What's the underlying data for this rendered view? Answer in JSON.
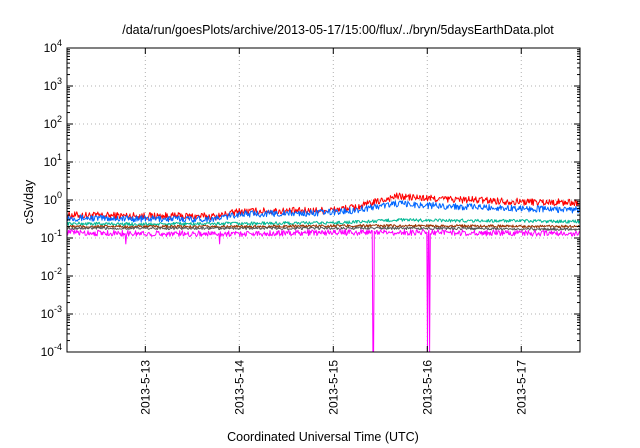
{
  "chart_data": {
    "type": "line",
    "title": "/data/run/goesPlots/archive/2013-05-17/15:00/flux/../bryn/5daysEarthData.plot",
    "xlabel": "Coordinated Universal Time (UTC)",
    "ylabel": "cSv/day",
    "yscale": "log",
    "grid": true,
    "xlim": [
      "2013-05-12 04:00",
      "2013-05-17 15:00"
    ],
    "ylim": [
      0.0001,
      10000
    ],
    "x_ticks": [
      "2013-5-13",
      "2013-5-14",
      "2013-5-15",
      "2013-5-16",
      "2013-5-17"
    ],
    "y_ticks": [
      {
        "base": "10",
        "exp": "-4"
      },
      {
        "base": "10",
        "exp": "-3"
      },
      {
        "base": "10",
        "exp": "-2"
      },
      {
        "base": "10",
        "exp": "-1"
      },
      {
        "base": "10",
        "exp": "0"
      },
      {
        "base": "10",
        "exp": "1"
      },
      {
        "base": "10",
        "exp": "2"
      },
      {
        "base": "10",
        "exp": "3"
      },
      {
        "base": "10",
        "exp": "4"
      }
    ],
    "series": [
      {
        "color": "#ff0000",
        "noise": 0.22,
        "spikes": [],
        "values": [
          [
            "2013-05-12 04:00",
            0.4
          ],
          [
            "2013-05-13 00:00",
            0.38
          ],
          [
            "2013-05-13 18:00",
            0.37
          ],
          [
            "2013-05-14 00:00",
            0.5
          ],
          [
            "2013-05-14 18:00",
            0.52
          ],
          [
            "2013-05-15 00:00",
            0.55
          ],
          [
            "2013-05-15 06:00",
            0.65
          ],
          [
            "2013-05-15 12:00",
            0.95
          ],
          [
            "2013-05-15 16:00",
            1.25
          ],
          [
            "2013-05-16 00:00",
            1.1
          ],
          [
            "2013-05-16 12:00",
            1.0
          ],
          [
            "2013-05-17 00:00",
            0.9
          ],
          [
            "2013-05-17 15:00",
            0.85
          ]
        ]
      },
      {
        "color": "#0066ff",
        "noise": 0.2,
        "spikes": [],
        "values": [
          [
            "2013-05-12 04:00",
            0.34
          ],
          [
            "2013-05-13 00:00",
            0.32
          ],
          [
            "2013-05-13 18:00",
            0.32
          ],
          [
            "2013-05-14 00:00",
            0.43
          ],
          [
            "2013-05-14 18:00",
            0.45
          ],
          [
            "2013-05-15 00:00",
            0.48
          ],
          [
            "2013-05-15 06:00",
            0.55
          ],
          [
            "2013-05-15 12:00",
            0.7
          ],
          [
            "2013-05-15 16:00",
            0.8
          ],
          [
            "2013-05-16 00:00",
            0.72
          ],
          [
            "2013-05-16 12:00",
            0.65
          ],
          [
            "2013-05-17 00:00",
            0.6
          ],
          [
            "2013-05-17 15:00",
            0.55
          ]
        ]
      },
      {
        "color": "#00b894",
        "noise": 0.1,
        "spikes": [],
        "values": [
          [
            "2013-05-12 04:00",
            0.24
          ],
          [
            "2013-05-13 00:00",
            0.23
          ],
          [
            "2013-05-14 00:00",
            0.24
          ],
          [
            "2013-05-15 00:00",
            0.25
          ],
          [
            "2013-05-15 12:00",
            0.28
          ],
          [
            "2013-05-15 16:00",
            0.3
          ],
          [
            "2013-05-16 00:00",
            0.29
          ],
          [
            "2013-05-17 00:00",
            0.28
          ],
          [
            "2013-05-17 15:00",
            0.27
          ]
        ]
      },
      {
        "color": "#9a3300",
        "noise": 0.08,
        "spikes": [],
        "values": [
          [
            "2013-05-12 04:00",
            0.2
          ],
          [
            "2013-05-13 00:00",
            0.2
          ],
          [
            "2013-05-14 00:00",
            0.2
          ],
          [
            "2013-05-15 00:00",
            0.21
          ],
          [
            "2013-05-15 16:00",
            0.21
          ],
          [
            "2013-05-16 00:00",
            0.21
          ],
          [
            "2013-05-17 15:00",
            0.2
          ]
        ]
      },
      {
        "color": "#555555",
        "noise": 0.08,
        "spikes": [],
        "values": [
          [
            "2013-05-12 04:00",
            0.18
          ],
          [
            "2013-05-13 00:00",
            0.18
          ],
          [
            "2013-05-14 00:00",
            0.18
          ],
          [
            "2013-05-15 00:00",
            0.18
          ],
          [
            "2013-05-16 00:00",
            0.18
          ],
          [
            "2013-05-17 15:00",
            0.17
          ]
        ]
      },
      {
        "color": "#ff00ff",
        "noise": 0.18,
        "spikes": [
          [
            "2013-05-15 10:10",
            0.0001
          ],
          [
            "2013-05-16 00:05",
            0.0001
          ],
          [
            "2013-05-16 00:35",
            0.0001
          ],
          [
            "2013-05-12 19:00",
            0.07
          ],
          [
            "2013-05-13 19:00",
            0.07
          ]
        ],
        "values": [
          [
            "2013-05-12 04:00",
            0.14
          ],
          [
            "2013-05-13 00:00",
            0.13
          ],
          [
            "2013-05-14 00:00",
            0.13
          ],
          [
            "2013-05-15 00:00",
            0.14
          ],
          [
            "2013-05-16 00:00",
            0.14
          ],
          [
            "2013-05-17 15:00",
            0.13
          ]
        ]
      }
    ]
  }
}
